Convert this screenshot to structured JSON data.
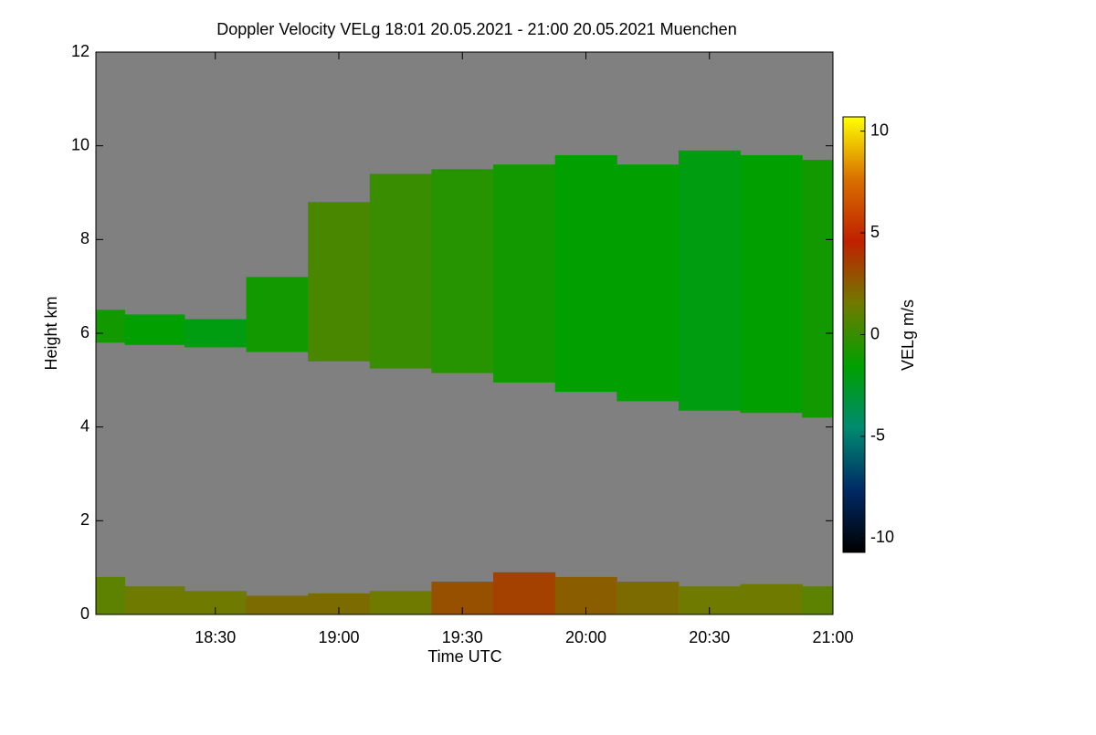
{
  "chart_data": {
    "type": "time-height",
    "title": "Doppler Velocity VELg   18:01 20.05.2021 - 21:00 20.05.2021 Muenchen",
    "x_label": "Time UTC",
    "y_label": "Height km",
    "x": [
      "18:01",
      "18:15",
      "18:30",
      "18:45",
      "19:00",
      "19:15",
      "19:30",
      "19:45",
      "20:00",
      "20:15",
      "20:30",
      "20:45",
      "21:00"
    ],
    "xlim": [
      "18:01",
      "21:00"
    ],
    "xticks": [
      "18:30",
      "19:00",
      "19:30",
      "20:00",
      "20:30",
      "21:00"
    ],
    "ylim": [
      0,
      12
    ],
    "yticks": [
      0,
      2,
      4,
      6,
      8,
      10,
      12
    ],
    "background": "#808080",
    "layers": [
      {
        "top": [
          6.5,
          6.4,
          6.3,
          7.2,
          8.8,
          9.4,
          9.5,
          9.6,
          9.8,
          9.6,
          9.9,
          9.8,
          9.7
        ],
        "base": [
          5.8,
          5.75,
          5.7,
          5.6,
          5.4,
          5.25,
          5.15,
          4.95,
          4.75,
          4.55,
          4.35,
          4.3,
          4.2
        ],
        "velocity": [
          -1,
          -1.5,
          -2,
          -1,
          0.5,
          0,
          -0.5,
          -1,
          -1.5,
          -1.5,
          -2,
          -1.5,
          -1
        ]
      },
      {
        "top": [
          0.8,
          0.6,
          0.5,
          0.4,
          0.45,
          0.5,
          0.7,
          0.9,
          0.8,
          0.7,
          0.6,
          0.65,
          0.6
        ],
        "base": [
          0,
          0,
          0,
          0,
          0,
          0,
          0,
          0,
          0,
          0,
          0,
          0,
          0
        ],
        "velocity": [
          1,
          1.5,
          1.5,
          2,
          2,
          1.5,
          3,
          3.5,
          2.5,
          2,
          1.5,
          1.5,
          1
        ]
      }
    ],
    "colorbar_label": "VELg m/s",
    "clim": [
      -10.7,
      10.7
    ],
    "cticks": [
      -10,
      -5,
      0,
      5,
      10
    ],
    "colormap": [
      "#000000",
      "#002a66",
      "#008a70",
      "#00a000",
      "#707a00",
      "#c02000",
      "#d87000",
      "#ffff00"
    ]
  }
}
